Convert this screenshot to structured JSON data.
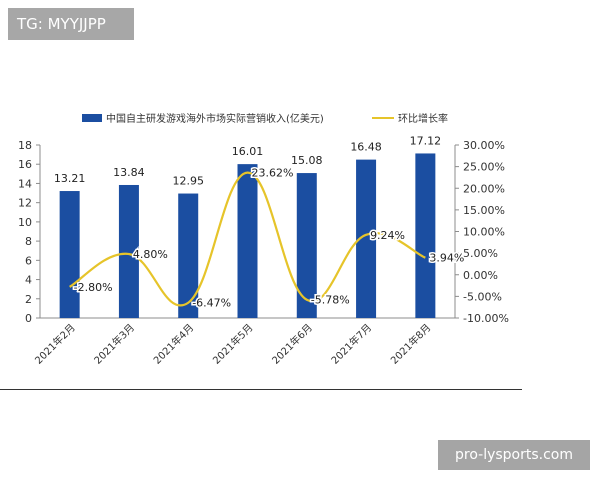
{
  "tag": "TG: MYYJJPP",
  "watermark": "pro-lysports.com",
  "chart_data": {
    "type": "bar",
    "categories": [
      "2021年2月",
      "2021年3月",
      "2021年4月",
      "2021年5月",
      "2021年6月",
      "2021年7月",
      "2021年8月"
    ],
    "series": [
      {
        "name": "中国自主研发游戏海外市场实际营销收入(亿美元)",
        "type": "bar",
        "axis": "left",
        "color": "#1b4ea1",
        "values": [
          13.21,
          13.84,
          12.95,
          16.01,
          15.08,
          16.48,
          17.12
        ],
        "labels": [
          "13.21",
          "13.84",
          "12.95",
          "16.01",
          "15.08",
          "16.48",
          "17.12"
        ]
      },
      {
        "name": "环比增长率",
        "type": "line",
        "axis": "right",
        "color": "#e6c42a",
        "values": [
          -2.8,
          4.8,
          -6.47,
          23.62,
          -5.78,
          9.24,
          3.94
        ],
        "labels": [
          "-2.80%",
          "4.80%",
          "-6.47%",
          "23.62%",
          "-5.78%",
          "9.24%",
          "3.94%"
        ]
      }
    ],
    "ylim": [
      0,
      18
    ],
    "yticks": [
      "0",
      "2",
      "4",
      "6",
      "8",
      "10",
      "12",
      "14",
      "16",
      "18"
    ],
    "y2lim": [
      -10,
      30
    ],
    "y2ticks": [
      "-10.00%",
      "-5.00%",
      "0.00%",
      "5.00%",
      "10.00%",
      "15.00%",
      "20.00%",
      "25.00%",
      "30.00%"
    ],
    "legend_position": "top",
    "grid": false,
    "title": "",
    "xlabel": "",
    "ylabel": ""
  }
}
